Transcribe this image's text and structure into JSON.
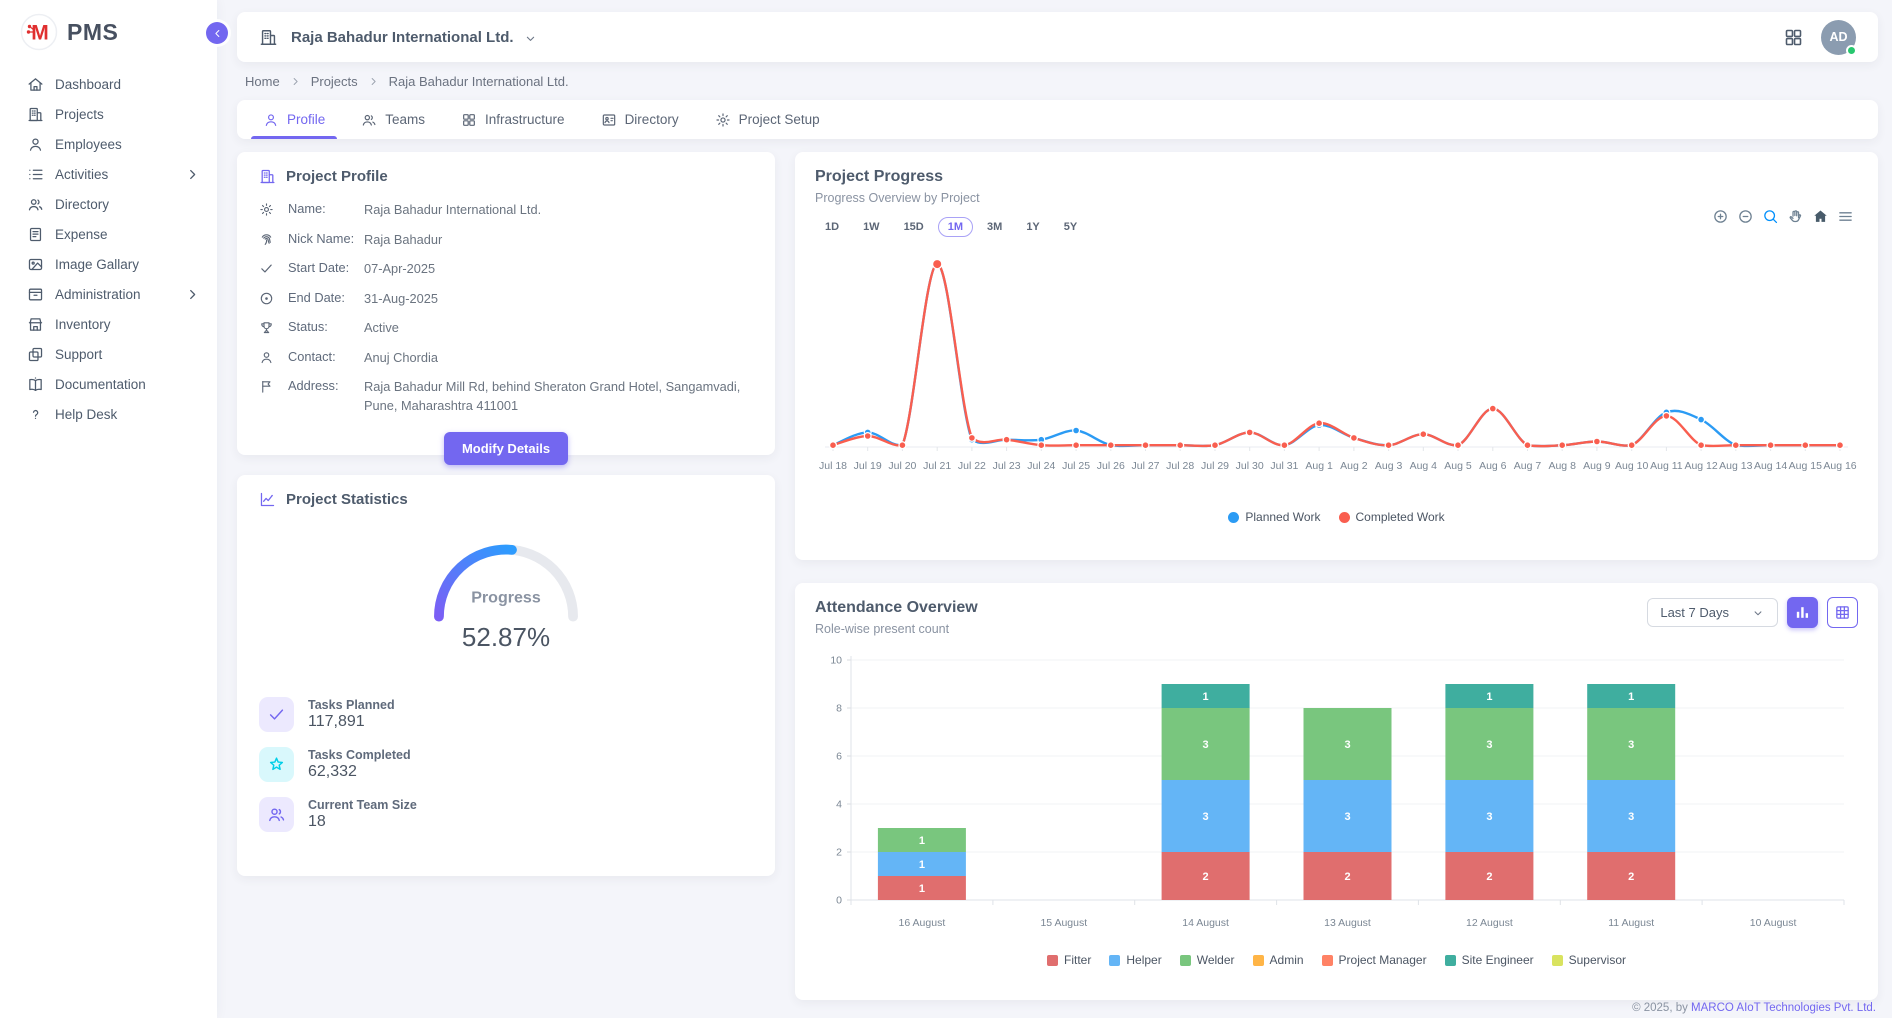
{
  "app": {
    "name": "PMS"
  },
  "colors": {
    "accent": "#7367f0",
    "planned": "#2b9bf4",
    "completed": "#f95e4f",
    "success": "#28c76f",
    "gauge_track": "#e7e9ee",
    "gauge_start": "#7b5ff5",
    "gauge_end": "#2d9cfe"
  },
  "sidebar": {
    "items": [
      {
        "label": "Dashboard",
        "icon": "home",
        "chevron": false
      },
      {
        "label": "Projects",
        "icon": "building",
        "chevron": false
      },
      {
        "label": "Employees",
        "icon": "user",
        "chevron": false
      },
      {
        "label": "Activities",
        "icon": "list",
        "chevron": true
      },
      {
        "label": "Directory",
        "icon": "users",
        "chevron": false
      },
      {
        "label": "Expense",
        "icon": "receipt",
        "chevron": false
      },
      {
        "label": "Image Gallary",
        "icon": "image",
        "chevron": false
      },
      {
        "label": "Administration",
        "icon": "archive",
        "chevron": true
      },
      {
        "label": "Inventory",
        "icon": "store",
        "chevron": false
      },
      {
        "label": "Support",
        "icon": "copy",
        "chevron": false
      },
      {
        "label": "Documentation",
        "icon": "book",
        "chevron": false
      },
      {
        "label": "Help Desk",
        "icon": "help",
        "chevron": false
      }
    ]
  },
  "header": {
    "company": "Raja Bahadur International Ltd.",
    "avatar_initials": "AD"
  },
  "breadcrumb": [
    "Home",
    "Projects",
    "Raja Bahadur International Ltd."
  ],
  "tabs": [
    {
      "label": "Profile",
      "icon": "user",
      "active": true
    },
    {
      "label": "Teams",
      "icon": "users",
      "active": false
    },
    {
      "label": "Infrastructure",
      "icon": "grid",
      "active": false
    },
    {
      "label": "Directory",
      "icon": "contact-card",
      "active": false
    },
    {
      "label": "Project Setup",
      "icon": "gear",
      "active": false
    }
  ],
  "project_profile": {
    "title": "Project Profile",
    "fields": [
      {
        "icon": "gear",
        "label": "Name:",
        "value": "Raja Bahadur International Ltd."
      },
      {
        "icon": "fingerprint",
        "label": "Nick Name:",
        "value": "Raja Bahadur"
      },
      {
        "icon": "check",
        "label": "Start Date:",
        "value": "07-Apr-2025"
      },
      {
        "icon": "target",
        "label": "End Date:",
        "value": "31-Aug-2025"
      },
      {
        "icon": "trophy",
        "label": "Status:",
        "value": "Active"
      },
      {
        "icon": "user",
        "label": "Contact:",
        "value": "Anuj Chordia"
      },
      {
        "icon": "flag",
        "label": "Address:",
        "value": "Raja Bahadur Mill Rd, behind Sheraton Grand Hotel, Sangamvadi, Pune, Maharashtra 411001"
      }
    ],
    "button": "Modify Details"
  },
  "project_statistics": {
    "title": "Project Statistics",
    "gauge_label": "Progress",
    "gauge_value": "52.87%",
    "gauge_percent": 52.87,
    "stats": [
      {
        "icon": "check",
        "label": "Tasks Planned",
        "value": "117,891",
        "bg": "#ece9fe",
        "fg": "#7367f0"
      },
      {
        "icon": "star",
        "label": "Tasks Completed",
        "value": "62,332",
        "bg": "#d9f8fc",
        "fg": "#00cfe8"
      },
      {
        "icon": "users",
        "label": "Current Team Size",
        "value": "18",
        "bg": "#ece9fe",
        "fg": "#7367f0"
      }
    ]
  },
  "project_progress": {
    "title": "Project Progress",
    "subtitle": "Progress Overview by Project",
    "ranges": [
      "1D",
      "1W",
      "15D",
      "1M",
      "3M",
      "1Y",
      "5Y"
    ],
    "active_range": "1M",
    "toolbar": [
      "zoom-in",
      "zoom-out",
      "search",
      "hand",
      "home-solid",
      "menu"
    ]
  },
  "attendance": {
    "title": "Attendance Overview",
    "subtitle": "Role-wise present count",
    "range_select": "Last 7 Days"
  },
  "footer": {
    "copyright": "© 2025, by ",
    "company": "MARCO AIoT Technologies Pvt. Ltd."
  },
  "chart_data": [
    {
      "type": "line",
      "title": "Project Progress",
      "x": [
        "Jul 18",
        "Jul 19",
        "Jul 20",
        "Jul 21",
        "Jul 22",
        "Jul 23",
        "Jul 24",
        "Jul 25",
        "Jul 26",
        "Jul 27",
        "Jul 28",
        "Jul 29",
        "Jul 30",
        "Jul 31",
        "Aug 1",
        "Aug 2",
        "Aug 3",
        "Aug 4",
        "Aug 5",
        "Aug 6",
        "Aug 7",
        "Aug 8",
        "Aug 9",
        "Aug 10",
        "Aug 11",
        "Aug 12",
        "Aug 13",
        "Aug 14",
        "Aug 15",
        "Aug 16"
      ],
      "series": [
        {
          "name": "Planned Work",
          "color": "#2b9bf4",
          "values": [
            1,
            8,
            1,
            100,
            4,
            4,
            4,
            9,
            1,
            1,
            1,
            1,
            8,
            1,
            12,
            5,
            1,
            7,
            1,
            21,
            1,
            1,
            3,
            1,
            19,
            15,
            1,
            1,
            1,
            1
          ]
        },
        {
          "name": "Completed Work",
          "color": "#f95e4f",
          "values": [
            1,
            6,
            1,
            100,
            5,
            4,
            1,
            1,
            1,
            1,
            1,
            1,
            8,
            1,
            13,
            5,
            1,
            7,
            1,
            21,
            1,
            1,
            3,
            1,
            17,
            1,
            1,
            1,
            1,
            1
          ]
        }
      ],
      "ylim": [
        0,
        105
      ],
      "grid": false,
      "legend_position": "bottom"
    },
    {
      "type": "bar",
      "stacked": true,
      "title": "Attendance Overview",
      "categories": [
        "16 August",
        "15 August",
        "14 August",
        "13 August",
        "12 August",
        "11 August",
        "10 August"
      ],
      "series": [
        {
          "name": "Fitter",
          "color": "#e06e6e",
          "values": [
            1,
            0,
            2,
            2,
            2,
            2,
            0
          ]
        },
        {
          "name": "Helper",
          "color": "#64b5f6",
          "values": [
            1,
            0,
            3,
            3,
            3,
            3,
            0
          ]
        },
        {
          "name": "Welder",
          "color": "#79c67e",
          "values": [
            1,
            0,
            3,
            3,
            3,
            3,
            0
          ]
        },
        {
          "name": "Admin",
          "color": "#ffb547",
          "values": [
            0,
            0,
            0,
            0,
            0,
            0,
            0
          ]
        },
        {
          "name": "Project Manager",
          "color": "#ff8265",
          "values": [
            0,
            0,
            0,
            0,
            0,
            0,
            0
          ]
        },
        {
          "name": "Site Engineer",
          "color": "#3fae9f",
          "values": [
            0,
            0,
            1,
            0,
            1,
            1,
            0
          ]
        },
        {
          "name": "Supervisor",
          "color": "#d9e35f",
          "values": [
            0,
            0,
            0,
            0,
            0,
            0,
            0
          ]
        }
      ],
      "ylim": [
        0,
        10
      ],
      "ytick_step": 2,
      "grid": true,
      "legend_position": "bottom"
    }
  ]
}
